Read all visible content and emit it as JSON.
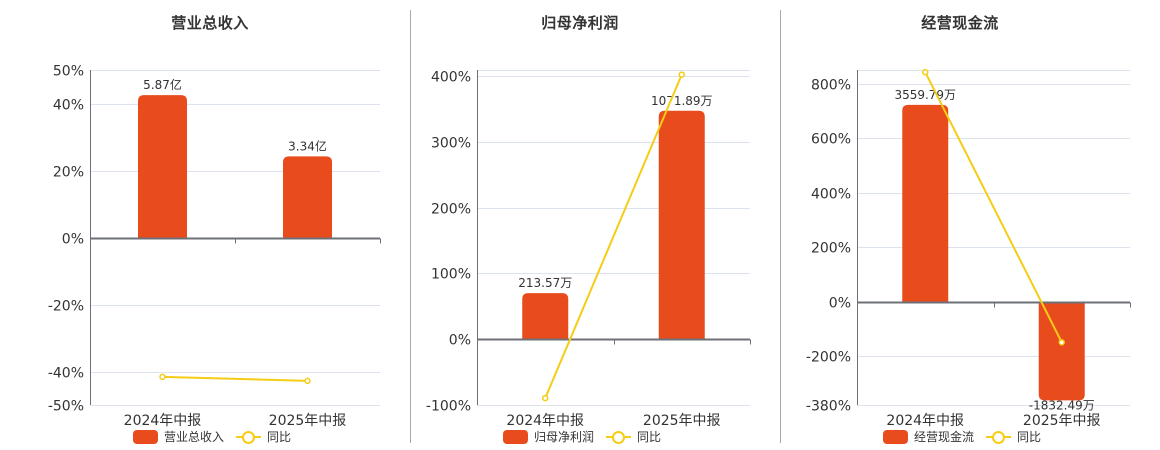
{
  "colors": {
    "bar": "#e84c1c",
    "line": "#f5cc16",
    "grid": "#dde3ee",
    "axis": "#6e7079"
  },
  "chart_data": [
    {
      "type": "bar",
      "title": "营业总收入",
      "categories": [
        "2024年中报",
        "2025年中报"
      ],
      "series": [
        {
          "name": "营业总收入",
          "type": "bar",
          "values": [
            42.5,
            24.2
          ],
          "labels": [
            "5.87亿",
            "3.34亿"
          ]
        },
        {
          "name": "同比",
          "type": "line",
          "values": [
            -41.6,
            -42.8
          ]
        }
      ],
      "yticks": [
        50,
        40,
        20,
        0,
        -20,
        -40,
        -50
      ],
      "ytick_labels": [
        "50%",
        "40%",
        "20%",
        "0%",
        "-20%",
        "-40%",
        "-50%"
      ],
      "ylim": [
        -50,
        50
      ],
      "xlabel": "",
      "ylabel": "",
      "grid": true,
      "legend_position": "bottom"
    },
    {
      "type": "bar",
      "title": "归母净利润",
      "categories": [
        "2024年中报",
        "2025年中报"
      ],
      "series": [
        {
          "name": "归母净利润",
          "type": "bar",
          "values": [
            70,
            347
          ],
          "labels": [
            "213.57万",
            "1071.89万"
          ]
        },
        {
          "name": "同比",
          "type": "line",
          "values": [
            -89.5,
            402
          ]
        }
      ],
      "yticks": [
        400,
        300,
        200,
        100,
        0,
        -100
      ],
      "ytick_labels": [
        "400%",
        "300%",
        "200%",
        "100%",
        "0%",
        "-100%"
      ],
      "ylim": [
        -100,
        409
      ],
      "xlabel": "",
      "ylabel": "",
      "grid": true,
      "legend_position": "bottom"
    },
    {
      "type": "bar",
      "title": "经营现金流",
      "categories": [
        "2024年中报",
        "2025年中报"
      ],
      "series": [
        {
          "name": "经营现金流",
          "type": "bar",
          "values": [
            722,
            -363
          ],
          "labels": [
            "3559.79万",
            "-1832.49万"
          ]
        },
        {
          "name": "同比",
          "type": "line",
          "values": [
            842,
            -150
          ]
        }
      ],
      "yticks": [
        800,
        600,
        400,
        200,
        0,
        -200,
        -380
      ],
      "ytick_labels": [
        "800%",
        "600%",
        "400%",
        "200%",
        "0%",
        "-200%",
        "-380%"
      ],
      "ylim": [
        -380,
        850
      ],
      "xlabel": "",
      "ylabel": "",
      "grid": true,
      "legend_position": "bottom"
    }
  ],
  "panels": [
    {
      "title": "营业总收入",
      "legend": {
        "bar_label": "营业总收入",
        "line_label": "同比"
      }
    },
    {
      "title": "归母净利润",
      "legend": {
        "bar_label": "归母净利润",
        "line_label": "同比"
      }
    },
    {
      "title": "经营现金流",
      "legend": {
        "bar_label": "经营现金流",
        "line_label": "同比"
      }
    }
  ]
}
